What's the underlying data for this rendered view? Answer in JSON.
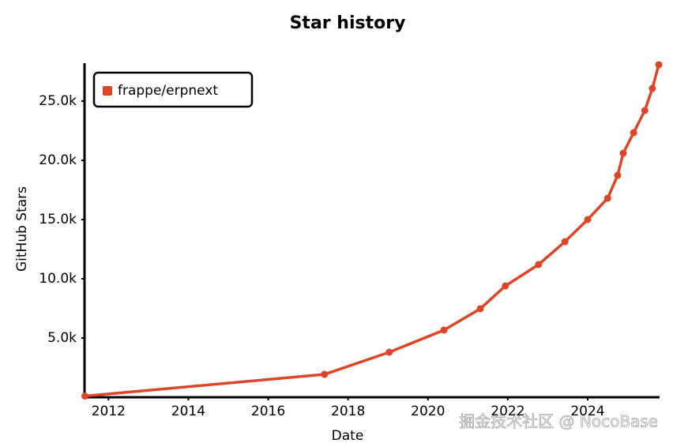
{
  "chart_data": {
    "type": "line",
    "title": "Star history",
    "x_label": "Date",
    "y_label": "GitHub Stars",
    "x": [
      2011.41,
      2017.41,
      2019.03,
      2020.4,
      2021.31,
      2021.94,
      2022.77,
      2023.43,
      2024.0,
      2024.5,
      2024.75,
      2024.89,
      2025.15,
      2025.43,
      2025.62,
      2025.78
    ],
    "series": [
      {
        "name": "frappe/erpnext",
        "color": "#dd4528",
        "values": [
          100,
          1930,
          3800,
          5670,
          7470,
          9400,
          11200,
          13130,
          15000,
          16800,
          18730,
          20600,
          22330,
          24200,
          26070,
          28070
        ]
      }
    ],
    "xlim": [
      2011.4,
      2025.8
    ],
    "xticks": [
      2012,
      2014,
      2016,
      2018,
      2020,
      2022,
      2024
    ],
    "ylim": [
      0,
      28200
    ],
    "yticks": [
      {
        "value": 5000,
        "label": "5.0k"
      },
      {
        "value": 10000,
        "label": "10.0k"
      },
      {
        "value": 15000,
        "label": "15.0k"
      },
      {
        "value": 20000,
        "label": "20.0k"
      },
      {
        "value": 25000,
        "label": "25.0k"
      }
    ],
    "legend": "top-left",
    "watermark": "掘金技术社区 @ NocoBase"
  }
}
